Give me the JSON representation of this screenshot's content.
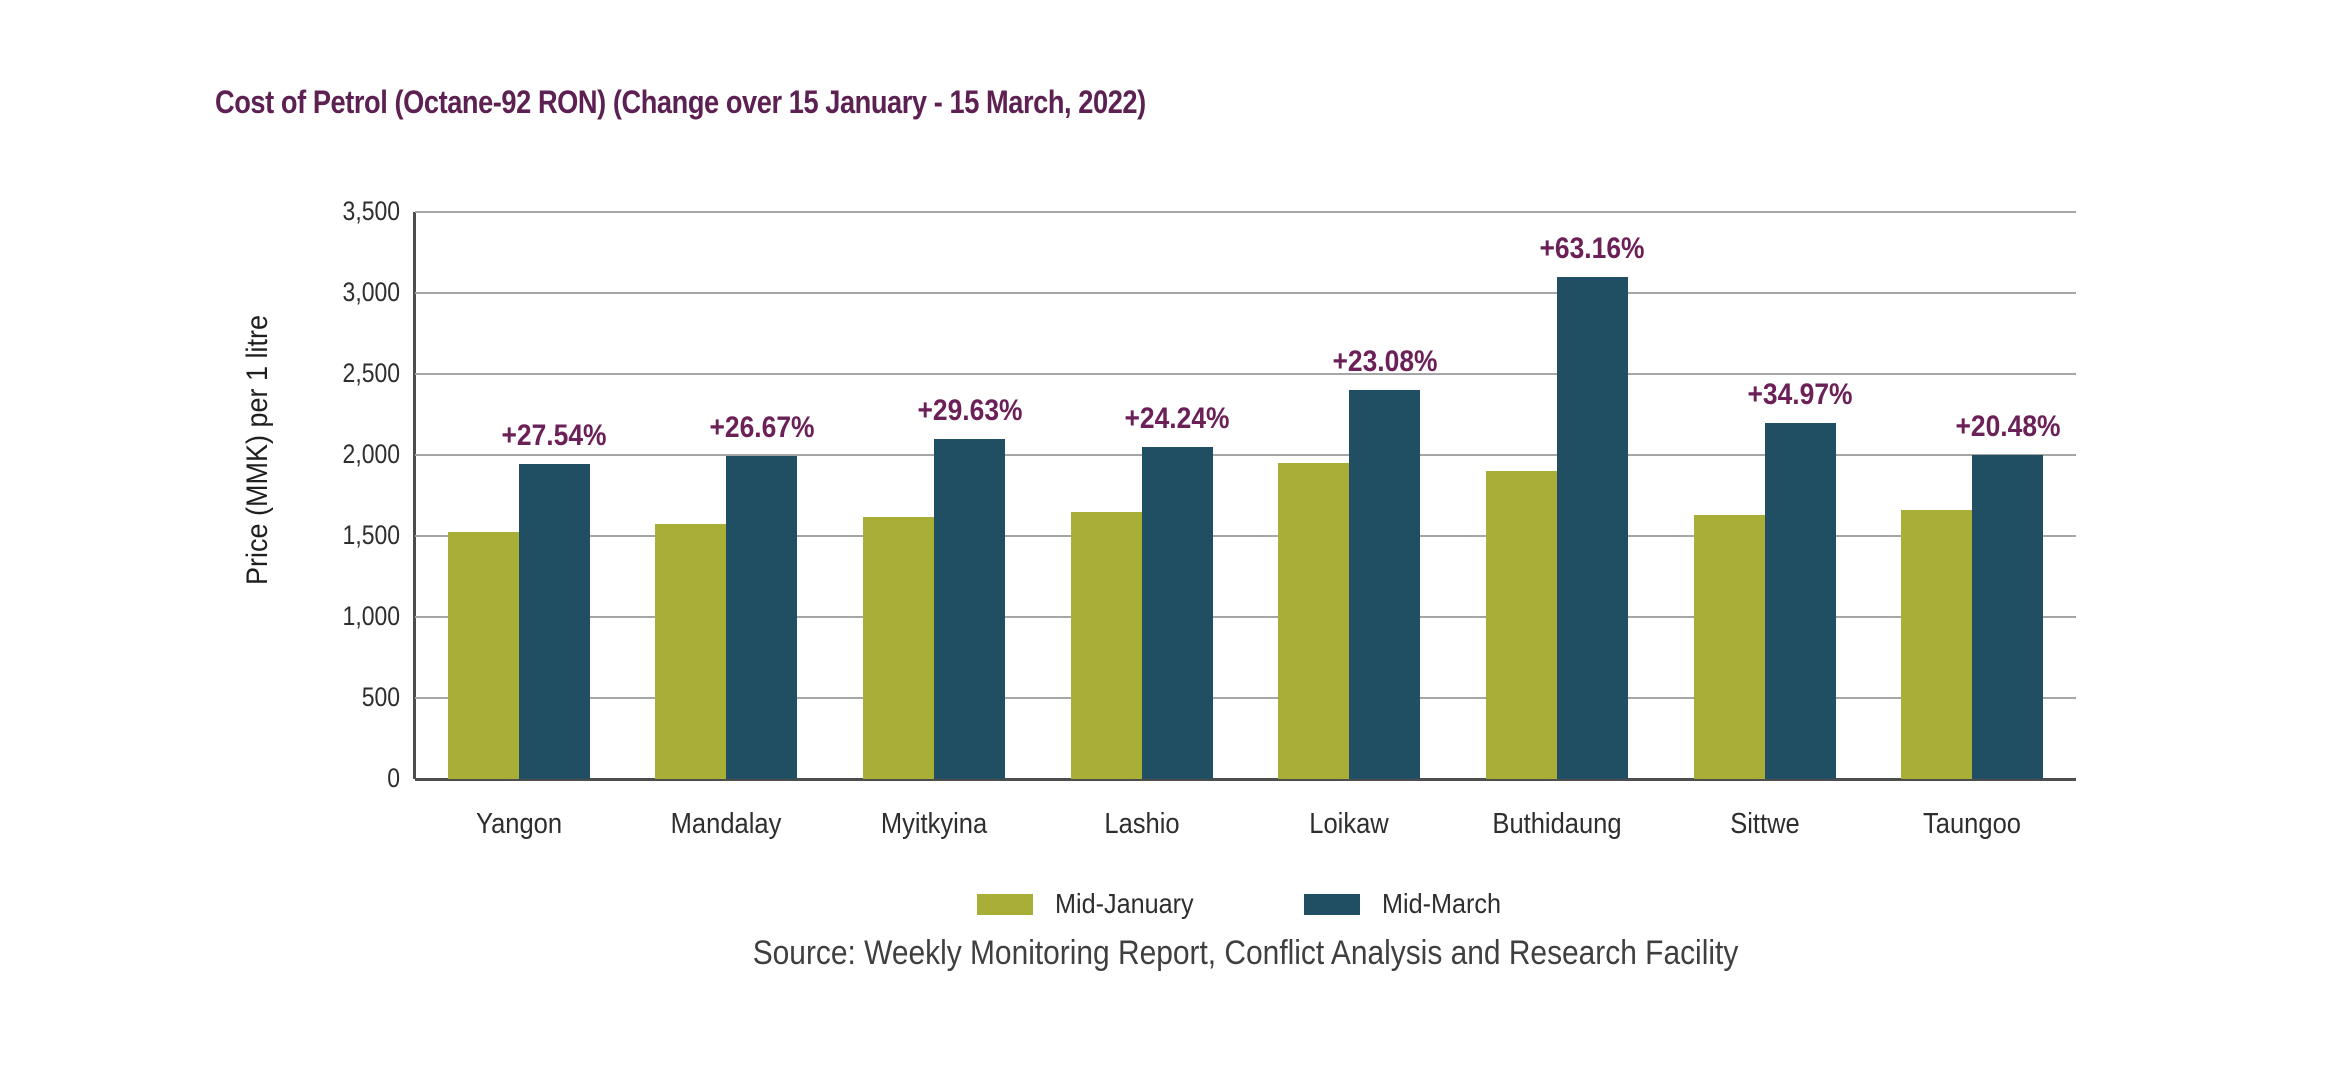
{
  "chart_data": {
    "type": "bar",
    "title": "Cost of Petrol (Octane-92 RON) (Change over 15 January - 15 March, 2022)",
    "ylabel": "Price (MMK) per 1 litre",
    "xlabel": "",
    "categories": [
      "Yangon",
      "Mandalay",
      "Myitkyina",
      "Lashio",
      "Loikaw",
      "Buthidaung",
      "Sittwe",
      "Taungoo"
    ],
    "series": [
      {
        "name": "Mid-January",
        "color": "#a9ae37",
        "values": [
          1525,
          1575,
          1620,
          1650,
          1950,
          1900,
          1630,
          1660
        ]
      },
      {
        "name": "Mid-March",
        "color": "#204f64",
        "values": [
          1945,
          1995,
          2100,
          2050,
          2400,
          3100,
          2200,
          2000
        ]
      }
    ],
    "change_labels": [
      "+27.54%",
      "+26.67%",
      "+29.63%",
      "+24.24%",
      "+23.08%",
      "+63.16%",
      "+34.97%",
      "+20.48%"
    ],
    "ylim": [
      0,
      3500
    ],
    "ytick_interval": 500,
    "ytick_labels": [
      "0",
      "500",
      "1,000",
      "1,500",
      "2,000",
      "2,500",
      "3,000",
      "3,500"
    ],
    "grid": true,
    "legend_position": "bottom",
    "source": "Source: Weekly Monitoring Report, Conflict Analysis and Research Facility",
    "colors": {
      "title": "#5c2152",
      "change_label": "#6b2058",
      "grid": "#a6a6a6",
      "axis": "#4d4d4d",
      "tick_text": "#2e2e2e",
      "source_text": "#3f3f3f"
    }
  }
}
